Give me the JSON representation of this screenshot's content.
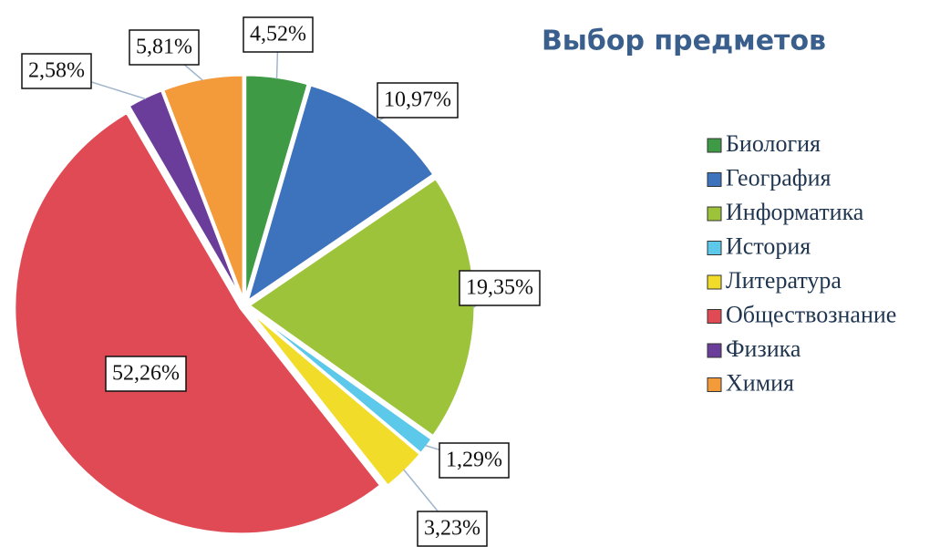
{
  "chart_data": {
    "type": "pie",
    "title": "Выбор предметов",
    "categories": [
      "Биология",
      "География",
      "Информатика",
      "История",
      "Литература",
      "Обществознание",
      "Физика",
      "Химия"
    ],
    "values": [
      4.52,
      10.97,
      19.35,
      1.29,
      3.23,
      52.26,
      2.58,
      5.81
    ],
    "value_labels": [
      "4,52%",
      "10,97%",
      "19,35%",
      "1,29%",
      "3,23%",
      "52,26%",
      "2,58%",
      "5,81%"
    ],
    "colors": [
      "#3e9a44",
      "#3d73bd",
      "#9dc33a",
      "#5cc8ea",
      "#f2dc2a",
      "#e04a55",
      "#6a3d9a",
      "#f39a3a"
    ],
    "legend": "right"
  }
}
